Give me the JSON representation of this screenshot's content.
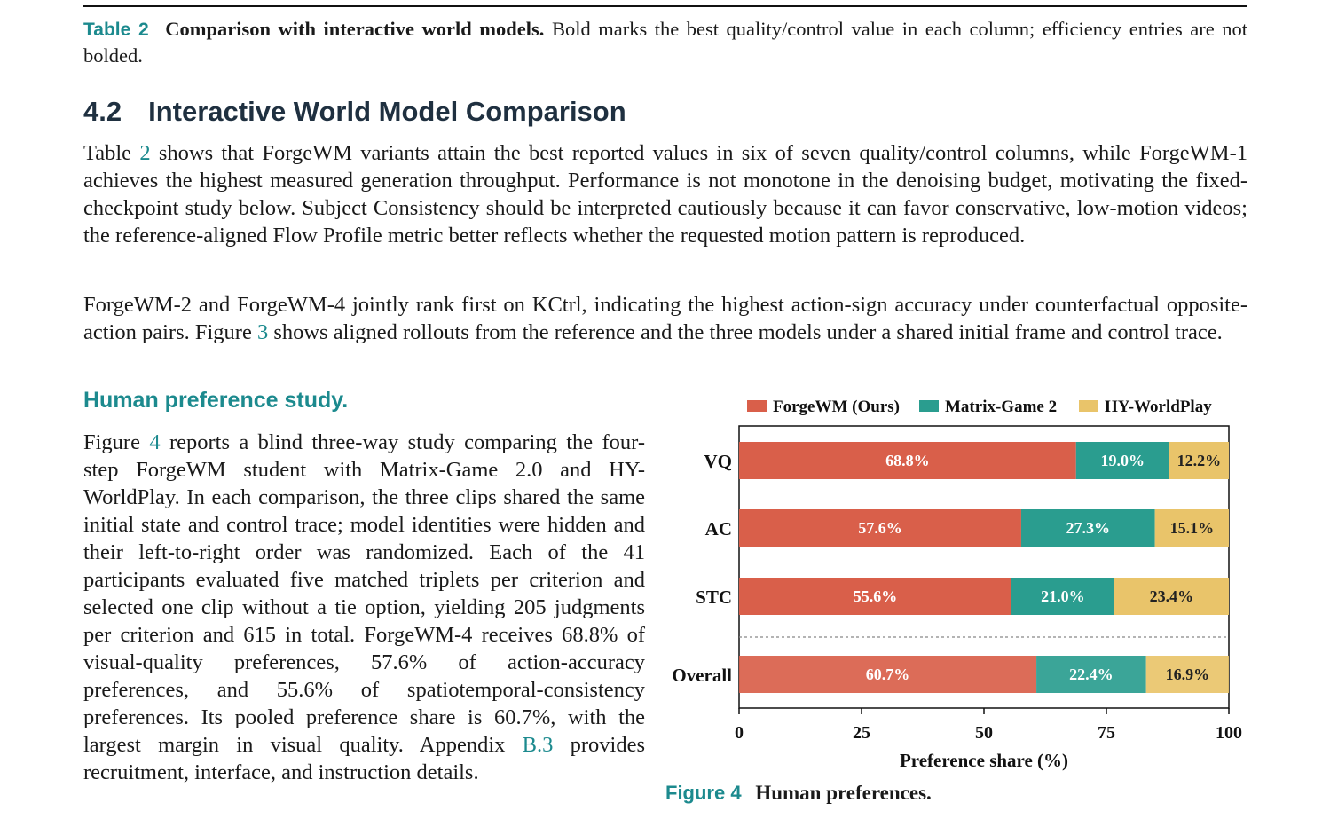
{
  "table_caption": {
    "label": "Table 2",
    "title": "Comparison with interactive world models.",
    "text": "Bold marks the best quality/control value in each column; efficiency entries are not bolded."
  },
  "section": {
    "number": "4.2",
    "title": "Interactive World Model Comparison"
  },
  "para1": {
    "a": "Table ",
    "ref": "2",
    "b": " shows that ForgeWM variants attain the best reported values in six of seven quality/control columns, while ForgeWM-1 achieves the highest measured generation throughput. Performance is not monotone in the denoising budget, motivating the fixed-checkpoint study below. Subject Consistency should be interpreted cautiously because it can favor conservative, low-motion videos; the reference-aligned Flow Profile metric better reflects whether the requested motion pattern is reproduced."
  },
  "para2": {
    "a": "ForgeWM-2 and ForgeWM-4 jointly rank first on KCtrl, indicating the highest action-sign accuracy under counterfactual opposite-action pairs. Figure ",
    "ref": "3",
    "b": " shows aligned rollouts from the reference and the three models under a shared initial frame and control trace."
  },
  "subsection_title": "Human preference study.",
  "para3": {
    "a": "Figure ",
    "ref": "4",
    "b": " reports a blind three-way study comparing the four-step ForgeWM student with Matrix-Game 2.0 and HY-WorldPlay. In each comparison, the three clips shared the same initial state and control trace; model identities were hidden and their left-to-right order was randomized. Each of the 41 participants evaluated five matched triplets per criterion and selected one clip without a tie option, yielding 205 judgments per criterion and 615 in total. ForgeWM-4 receives 68.8% of visual-quality preferences, 57.6% of action-accuracy preferences, and 55.6% of spatiotemporal-consistency preferences. Its pooled preference share is 60.7%, with the largest margin in visual quality. Appendix ",
    "ref2": "B.3",
    "c": " provides recruitment, interface, and instruction details."
  },
  "figure_caption": {
    "label": "Figure 4",
    "title": "Human preferences."
  },
  "chart_data": {
    "type": "bar",
    "orientation": "horizontal-stacked",
    "categories": [
      "VQ",
      "AC",
      "STC",
      "Overall"
    ],
    "series": [
      {
        "name": "ForgeWM (Ours)",
        "color": "#d95f4a",
        "values": [
          68.8,
          57.6,
          55.6,
          60.7
        ],
        "labels": [
          "68.8%",
          "57.6%",
          "55.6%",
          "60.7%"
        ]
      },
      {
        "name": "Matrix-Game 2",
        "color": "#2a9d8f",
        "values": [
          19.0,
          27.3,
          21.0,
          22.4
        ],
        "labels": [
          "19.0%",
          "27.3%",
          "21.0%",
          "22.4%"
        ]
      },
      {
        "name": "HY-WorldPlay",
        "color": "#e9c46a",
        "values": [
          12.2,
          15.1,
          23.4,
          16.9
        ],
        "labels": [
          "12.2%",
          "15.1%",
          "23.4%",
          "16.9%"
        ]
      }
    ],
    "xlabel": "Preference share (%)",
    "xlim": [
      0,
      100
    ],
    "xticks": [
      "0",
      "25",
      "50",
      "75",
      "100"
    ],
    "legend": "top",
    "grid": false
  }
}
